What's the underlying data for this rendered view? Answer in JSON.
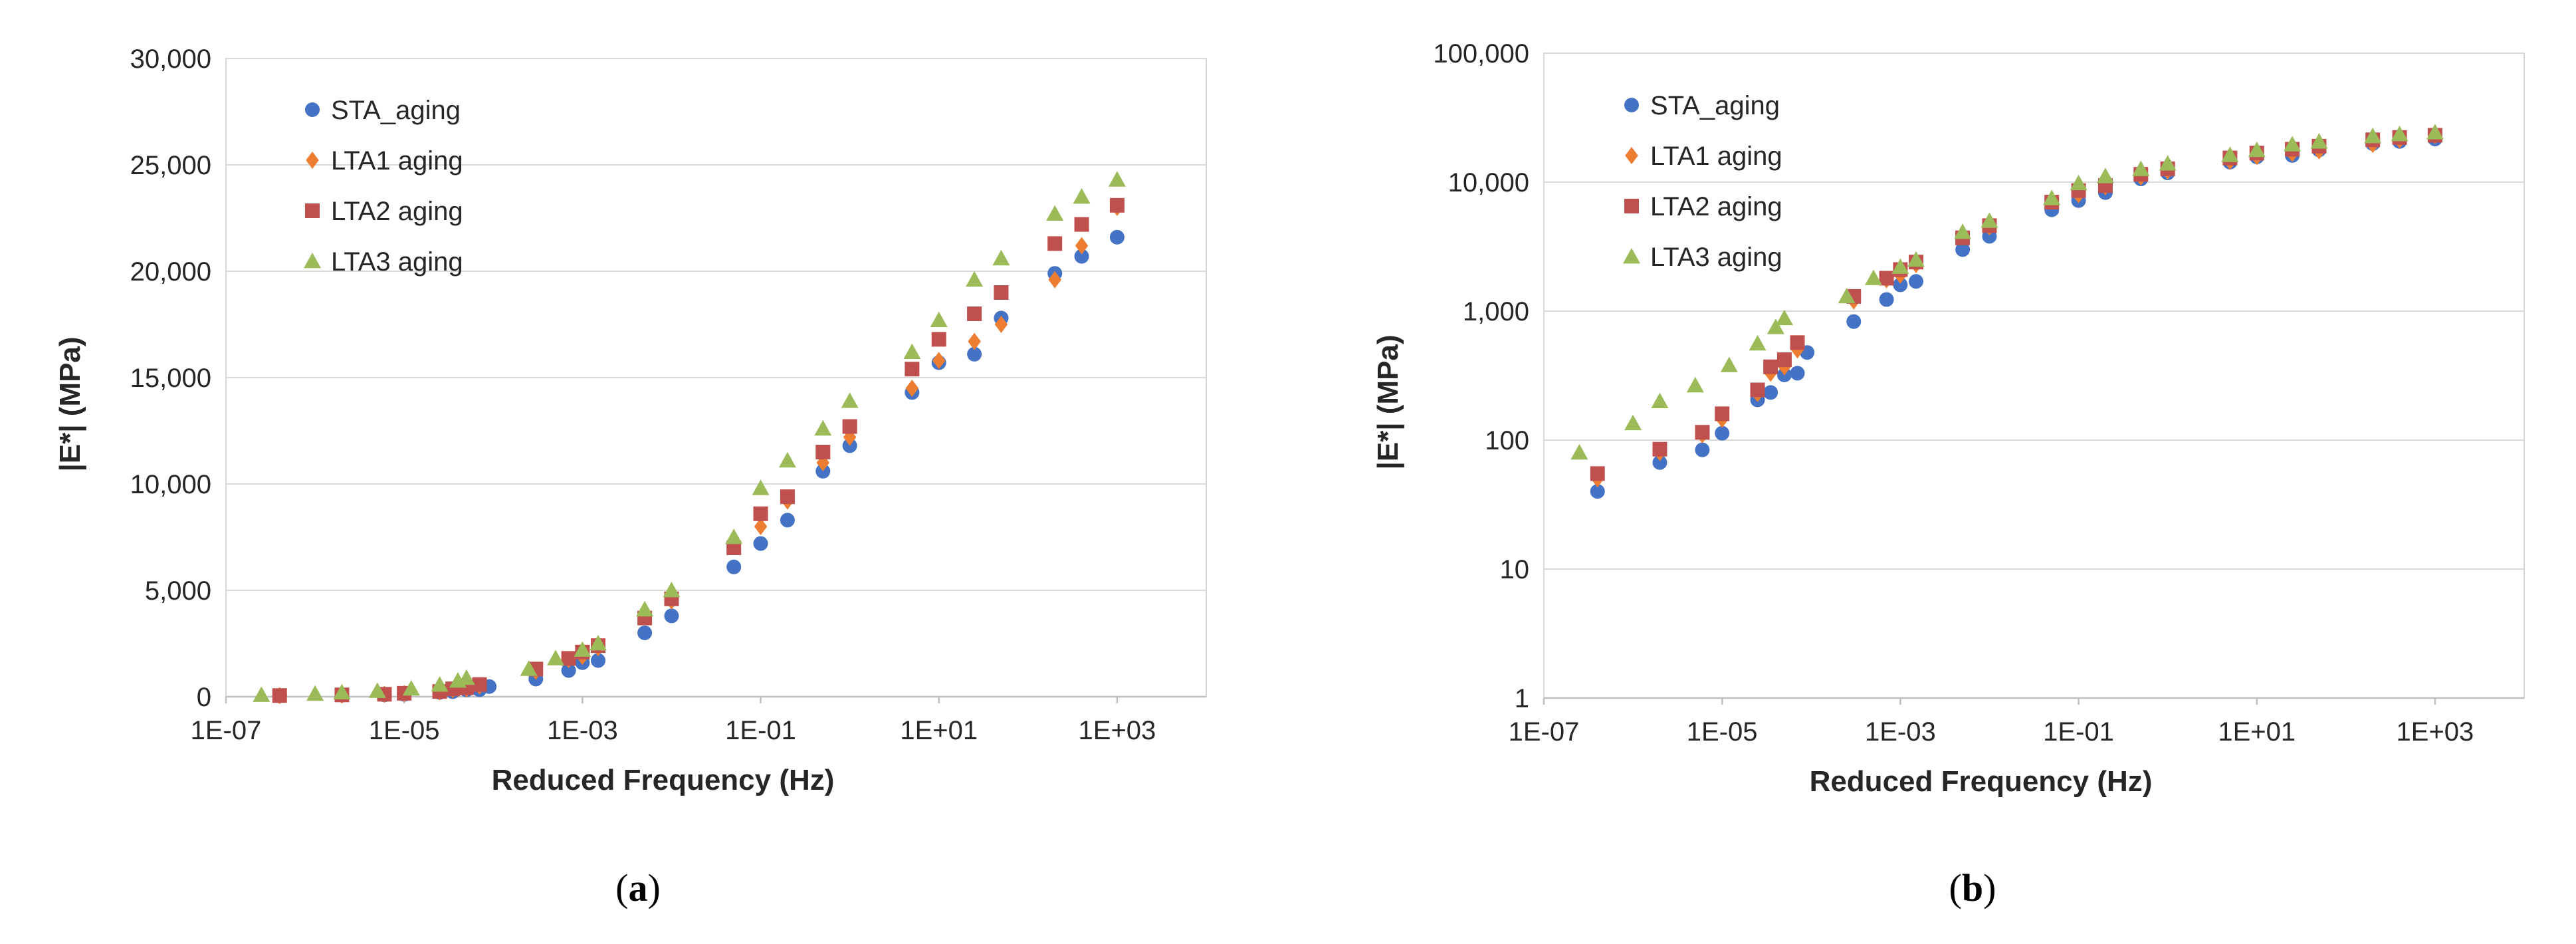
{
  "chart_data": [
    {
      "type": "scatter",
      "panel": "a",
      "caption_letter": "a",
      "caption_open": "(",
      "caption_close": ")",
      "title": "",
      "xlabel": "Reduced Frequency (Hz)",
      "ylabel": "|E*| (MPa)",
      "xscale": "log",
      "yscale": "linear",
      "xlim": [
        1e-07,
        10000.0
      ],
      "ylim": [
        0,
        30000
      ],
      "grid": "horizontal",
      "legend": "top-left",
      "xticks": [
        1e-07,
        1e-05,
        0.001,
        0.1,
        10.0,
        1000.0
      ],
      "xtick_labels": [
        "1E-07",
        "1E-05",
        "1E-03",
        "1E-01",
        "1E+01",
        "1E+03"
      ],
      "yticks": [
        0,
        5000,
        10000,
        15000,
        20000,
        25000,
        30000
      ],
      "ytick_labels": [
        "0",
        "5,000",
        "10,000",
        "15,000",
        "20,000",
        "25,000",
        "30,000"
      ],
      "series": [
        {
          "name": "STA_aging",
          "color": "#4472c4",
          "marker": "circle",
          "points": [
            [
              4e-07,
              40
            ],
            [
              2e-06,
              67
            ],
            [
              6e-06,
              84
            ],
            [
              1e-05,
              113
            ],
            [
              2.5e-05,
              205
            ],
            [
              3.5e-05,
              234
            ],
            [
              5e-05,
              320
            ],
            [
              7e-05,
              330
            ],
            [
              9e-05,
              478
            ],
            [
              0.0003,
              830
            ],
            [
              0.0007,
              1230
            ],
            [
              0.001,
              1600
            ],
            [
              0.0015,
              1700
            ],
            [
              0.005,
              3000
            ],
            [
              0.01,
              3800
            ],
            [
              0.05,
              6100
            ],
            [
              0.1,
              7200
            ],
            [
              0.2,
              8300
            ],
            [
              0.5,
              10600
            ],
            [
              1,
              11800
            ],
            [
              5,
              14300
            ],
            [
              10,
              15700
            ],
            [
              25,
              16100
            ],
            [
              50,
              17800
            ],
            [
              200,
              19900
            ],
            [
              400,
              20700
            ],
            [
              1000,
              21600
            ]
          ]
        },
        {
          "name": "LTA1 aging",
          "color": "#ed7d31",
          "marker": "diamond",
          "points": [
            [
              4e-07,
              50
            ],
            [
              2e-06,
              80
            ],
            [
              6e-06,
              110
            ],
            [
              1e-05,
              145
            ],
            [
              2.5e-05,
              230
            ],
            [
              3.5e-05,
              330
            ],
            [
              5e-05,
              370
            ],
            [
              7e-05,
              500
            ],
            [
              0.0003,
              1200
            ],
            [
              0.0007,
              1750
            ],
            [
              0.001,
              1900
            ],
            [
              0.0015,
              2300
            ],
            [
              0.005,
              3800
            ],
            [
              0.01,
              4500
            ],
            [
              0.05,
              7100
            ],
            [
              0.1,
              8000
            ],
            [
              0.2,
              9200
            ],
            [
              0.5,
              11000
            ],
            [
              1,
              12200
            ],
            [
              5,
              14500
            ],
            [
              10,
              15800
            ],
            [
              25,
              16700
            ],
            [
              50,
              17500
            ],
            [
              200,
              19600
            ],
            [
              400,
              21200
            ],
            [
              1000,
              23000
            ]
          ]
        },
        {
          "name": "LTA2 aging",
          "color": "#c0504d",
          "marker": "square",
          "points": [
            [
              4e-07,
              55
            ],
            [
              2e-06,
              85
            ],
            [
              6e-06,
              115
            ],
            [
              1e-05,
              160
            ],
            [
              2.5e-05,
              245
            ],
            [
              3.5e-05,
              370
            ],
            [
              5e-05,
              420
            ],
            [
              7e-05,
              570
            ],
            [
              0.0003,
              1300
            ],
            [
              0.0007,
              1800
            ],
            [
              0.001,
              2100
            ],
            [
              0.0015,
              2400
            ],
            [
              0.005,
              3700
            ],
            [
              0.01,
              4600
            ],
            [
              0.05,
              7000
            ],
            [
              0.1,
              8600
            ],
            [
              0.2,
              9400
            ],
            [
              0.5,
              11500
            ],
            [
              1,
              12700
            ],
            [
              5,
              15400
            ],
            [
              10,
              16800
            ],
            [
              25,
              18000
            ],
            [
              50,
              19000
            ],
            [
              200,
              21300
            ],
            [
              400,
              22200
            ],
            [
              1000,
              23100
            ]
          ]
        },
        {
          "name": "LTA3 aging",
          "color": "#9bbb59",
          "marker": "triangle",
          "points": [
            [
              2.5e-07,
              80
            ],
            [
              1e-06,
              135
            ],
            [
              2e-06,
              200
            ],
            [
              5e-06,
              265
            ],
            [
              1.2e-05,
              380
            ],
            [
              2.5e-05,
              560
            ],
            [
              4e-05,
              750
            ],
            [
              5e-05,
              880
            ],
            [
              0.00025,
              1300
            ],
            [
              0.0005,
              1800
            ],
            [
              0.001,
              2200
            ],
            [
              0.0015,
              2500
            ],
            [
              0.005,
              4100
            ],
            [
              0.01,
              5000
            ],
            [
              0.05,
              7500
            ],
            [
              0.1,
              9800
            ],
            [
              0.2,
              11100
            ],
            [
              0.5,
              12600
            ],
            [
              1,
              13900
            ],
            [
              5,
              16200
            ],
            [
              10,
              17700
            ],
            [
              25,
              19600
            ],
            [
              50,
              20600
            ],
            [
              200,
              22700
            ],
            [
              400,
              23500
            ],
            [
              1000,
              24300
            ]
          ]
        }
      ]
    },
    {
      "type": "scatter",
      "panel": "b",
      "caption_letter": "b",
      "caption_open": "(",
      "caption_close": ")",
      "title": "",
      "xlabel": "Reduced Frequency (Hz)",
      "ylabel": "|E*| (MPa)",
      "xscale": "log",
      "yscale": "log",
      "xlim": [
        1e-07,
        10000.0
      ],
      "ylim": [
        1,
        100000
      ],
      "grid": "horizontal",
      "legend": "top-left",
      "xticks": [
        1e-07,
        1e-05,
        0.001,
        0.1,
        10.0,
        1000.0
      ],
      "xtick_labels": [
        "1E-07",
        "1E-05",
        "1E-03",
        "1E-01",
        "1E+01",
        "1E+03"
      ],
      "yticks": [
        1,
        10,
        100,
        1000,
        10000,
        100000
      ],
      "ytick_labels": [
        "1",
        "10",
        "100",
        "1,000",
        "10,000",
        "100,000"
      ],
      "series": [
        {
          "name": "STA_aging",
          "color": "#4472c4",
          "marker": "circle",
          "points": [
            [
              4e-07,
              40
            ],
            [
              2e-06,
              67
            ],
            [
              6e-06,
              84
            ],
            [
              1e-05,
              113
            ],
            [
              2.5e-05,
              205
            ],
            [
              3.5e-05,
              234
            ],
            [
              5e-05,
              320
            ],
            [
              7e-05,
              330
            ],
            [
              9e-05,
              478
            ],
            [
              0.0003,
              830
            ],
            [
              0.0007,
              1230
            ],
            [
              0.001,
              1600
            ],
            [
              0.0015,
              1700
            ],
            [
              0.005,
              3000
            ],
            [
              0.01,
              3800
            ],
            [
              0.05,
              6100
            ],
            [
              0.1,
              7200
            ],
            [
              0.2,
              8300
            ],
            [
              0.5,
              10600
            ],
            [
              1,
              11800
            ],
            [
              5,
              14300
            ],
            [
              10,
              15700
            ],
            [
              25,
              16100
            ],
            [
              50,
              17800
            ],
            [
              200,
              19900
            ],
            [
              400,
              20700
            ],
            [
              1000,
              21600
            ]
          ]
        },
        {
          "name": "LTA1 aging",
          "color": "#ed7d31",
          "marker": "diamond",
          "points": [
            [
              4e-07,
              50
            ],
            [
              2e-06,
              80
            ],
            [
              6e-06,
              110
            ],
            [
              1e-05,
              145
            ],
            [
              2.5e-05,
              230
            ],
            [
              3.5e-05,
              330
            ],
            [
              5e-05,
              370
            ],
            [
              7e-05,
              500
            ],
            [
              0.0003,
              1200
            ],
            [
              0.0007,
              1750
            ],
            [
              0.001,
              1900
            ],
            [
              0.0015,
              2300
            ],
            [
              0.005,
              3800
            ],
            [
              0.01,
              4500
            ],
            [
              0.05,
              7100
            ],
            [
              0.1,
              8000
            ],
            [
              0.2,
              9200
            ],
            [
              0.5,
              11000
            ],
            [
              1,
              12200
            ],
            [
              5,
              14500
            ],
            [
              10,
              15800
            ],
            [
              25,
              16700
            ],
            [
              50,
              17500
            ],
            [
              200,
              19600
            ],
            [
              400,
              21200
            ],
            [
              1000,
              23000
            ]
          ]
        },
        {
          "name": "LTA2 aging",
          "color": "#c0504d",
          "marker": "square",
          "points": [
            [
              4e-07,
              55
            ],
            [
              2e-06,
              85
            ],
            [
              6e-06,
              115
            ],
            [
              1e-05,
              160
            ],
            [
              2.5e-05,
              245
            ],
            [
              3.5e-05,
              370
            ],
            [
              5e-05,
              420
            ],
            [
              7e-05,
              570
            ],
            [
              0.0003,
              1300
            ],
            [
              0.0007,
              1800
            ],
            [
              0.001,
              2100
            ],
            [
              0.0015,
              2400
            ],
            [
              0.005,
              3700
            ],
            [
              0.01,
              4600
            ],
            [
              0.05,
              7000
            ],
            [
              0.1,
              8600
            ],
            [
              0.2,
              9400
            ],
            [
              0.5,
              11500
            ],
            [
              1,
              12700
            ],
            [
              5,
              15400
            ],
            [
              10,
              16800
            ],
            [
              25,
              18000
            ],
            [
              50,
              19000
            ],
            [
              200,
              21300
            ],
            [
              400,
              22200
            ],
            [
              1000,
              23100
            ]
          ]
        },
        {
          "name": "LTA3 aging",
          "color": "#9bbb59",
          "marker": "triangle",
          "points": [
            [
              2.5e-07,
              80
            ],
            [
              1e-06,
              135
            ],
            [
              2e-06,
              200
            ],
            [
              5e-06,
              265
            ],
            [
              1.2e-05,
              380
            ],
            [
              2.5e-05,
              560
            ],
            [
              4e-05,
              750
            ],
            [
              5e-05,
              880
            ],
            [
              0.00025,
              1300
            ],
            [
              0.0005,
              1800
            ],
            [
              0.001,
              2200
            ],
            [
              0.0015,
              2500
            ],
            [
              0.005,
              4100
            ],
            [
              0.01,
              5000
            ],
            [
              0.05,
              7500
            ],
            [
              0.1,
              9800
            ],
            [
              0.2,
              11100
            ],
            [
              0.5,
              12600
            ],
            [
              1,
              13900
            ],
            [
              5,
              16200
            ],
            [
              10,
              17700
            ],
            [
              25,
              19600
            ],
            [
              50,
              20600
            ],
            [
              200,
              22700
            ],
            [
              400,
              23500
            ],
            [
              1000,
              24300
            ]
          ]
        }
      ]
    }
  ]
}
